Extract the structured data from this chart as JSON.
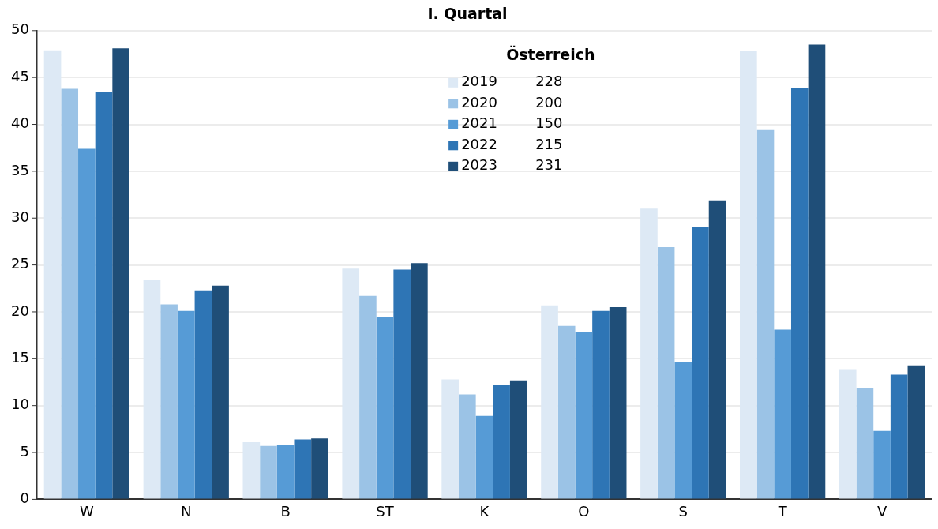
{
  "chart_data": {
    "type": "bar",
    "title": "I. Quartal",
    "legend_title": "Österreich",
    "categories": [
      "W",
      "N",
      "B",
      "ST",
      "K",
      "O",
      "S",
      "T",
      "V"
    ],
    "series": [
      {
        "name": "2019",
        "color": "#dde9f5",
        "values": [
          47.9,
          23.4,
          6.1,
          24.6,
          12.8,
          20.7,
          31.0,
          47.8,
          13.9
        ]
      },
      {
        "name": "2020",
        "color": "#9bc3e6",
        "values": [
          43.8,
          20.8,
          5.7,
          21.7,
          11.2,
          18.5,
          26.9,
          39.4,
          11.9
        ]
      },
      {
        "name": "2021",
        "color": "#569bd6",
        "values": [
          37.4,
          20.1,
          5.8,
          19.5,
          8.9,
          17.9,
          14.7,
          18.1,
          7.3
        ]
      },
      {
        "name": "2022",
        "color": "#2e75b5",
        "values": [
          43.5,
          22.3,
          6.4,
          24.5,
          12.2,
          20.1,
          29.1,
          43.9,
          13.3
        ]
      },
      {
        "name": "2023",
        "color": "#1f4e78",
        "values": [
          48.1,
          22.8,
          6.5,
          25.2,
          12.7,
          20.5,
          31.9,
          48.5,
          14.3
        ]
      }
    ],
    "annotations": [
      "228",
      "200",
      "150",
      "215",
      "231"
    ],
    "ylim": [
      0,
      50
    ],
    "yticks": [
      0,
      5,
      10,
      15,
      20,
      25,
      30,
      35,
      40,
      45,
      50
    ],
    "grid": "y",
    "legend": "top"
  }
}
